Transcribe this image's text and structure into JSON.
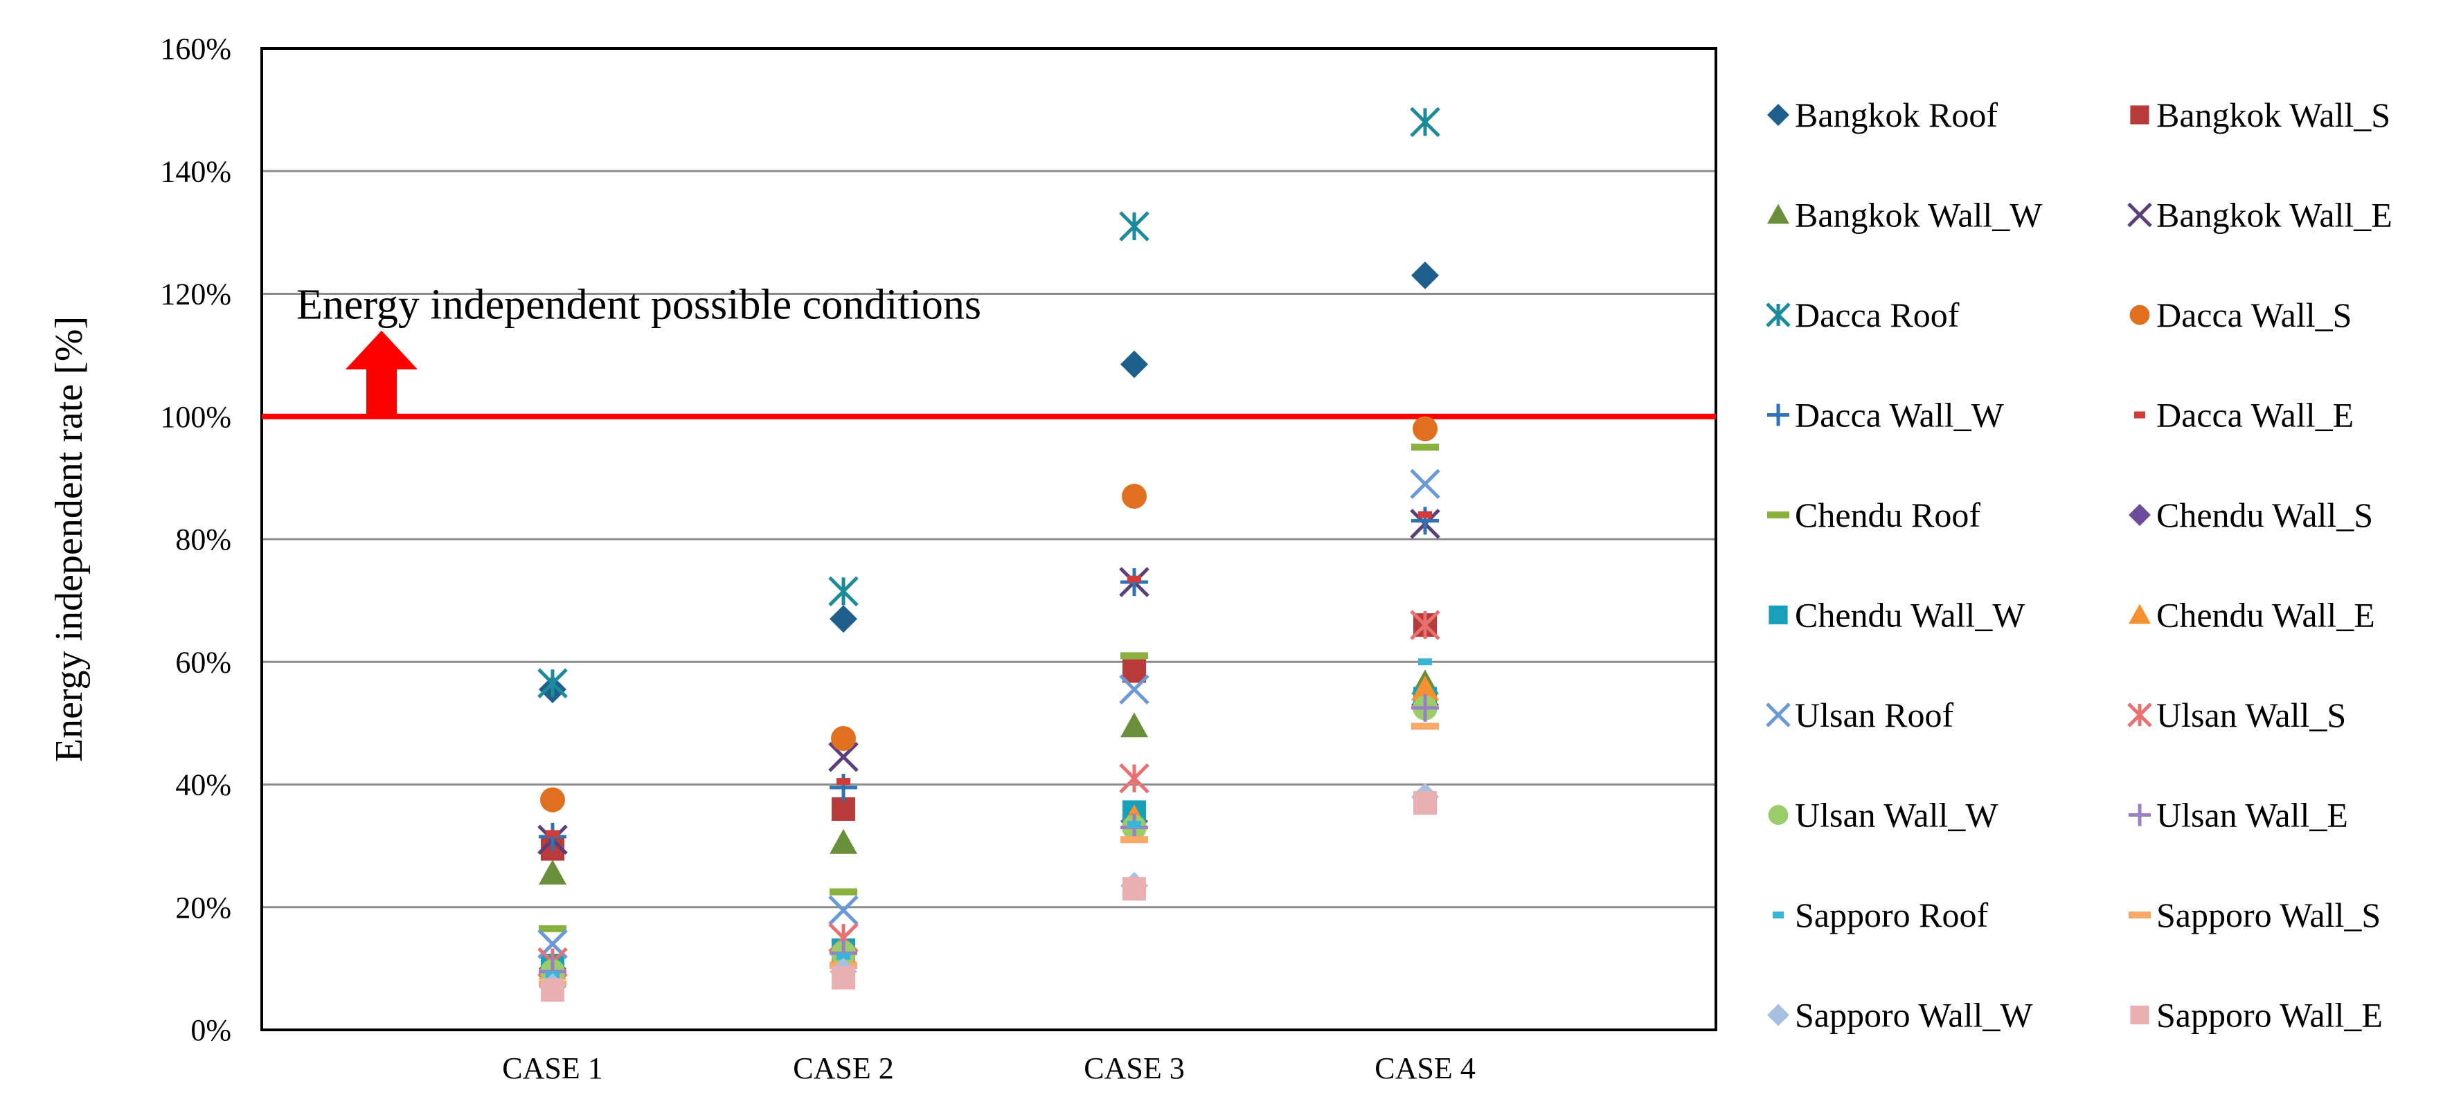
{
  "chart_data": {
    "type": "scatter",
    "title": "",
    "xlabel": "",
    "ylabel": "Energy independent rate [%]",
    "ylim": [
      0,
      160
    ],
    "yticks": [
      0,
      20,
      40,
      60,
      80,
      100,
      120,
      140,
      160
    ],
    "ytick_labels": [
      "0%",
      "20%",
      "40%",
      "60%",
      "80%",
      "100%",
      "120%",
      "140%",
      "160%"
    ],
    "categories": [
      "CASE 1",
      "CASE 2",
      "CASE 3",
      "CASE 4"
    ],
    "grid": true,
    "legend_position": "right",
    "reference_line": {
      "value": 100,
      "color": "#ff0000"
    },
    "annotation": "Energy independent possible conditions",
    "series": [
      {
        "name": "Bangkok Roof",
        "marker": "diamond",
        "color": "#1f5f8b",
        "values": [
          55.5,
          67,
          108.5,
          123
        ]
      },
      {
        "name": "Bangkok Wall_S",
        "marker": "square",
        "color": "#b83a3a",
        "values": [
          29.5,
          36,
          58.5,
          66
        ]
      },
      {
        "name": "Bangkok Wall_W",
        "marker": "triangle",
        "color": "#6a8f3a",
        "values": [
          25.5,
          30.5,
          49.5,
          56.5
        ]
      },
      {
        "name": "Bangkok Wall_E",
        "marker": "x",
        "color": "#5b3f7a",
        "values": [
          31,
          44.5,
          73,
          82.5
        ]
      },
      {
        "name": "Dacca Roof",
        "marker": "star",
        "color": "#1b8a9a",
        "values": [
          56.5,
          71.5,
          131,
          148
        ]
      },
      {
        "name": "Dacca Wall_S",
        "marker": "circle",
        "color": "#e07020",
        "values": [
          37.5,
          47.5,
          87,
          98
        ]
      },
      {
        "name": "Dacca Wall_W",
        "marker": "plus",
        "color": "#2f73b5",
        "values": [
          31.5,
          39.5,
          73,
          83
        ]
      },
      {
        "name": "Dacca Wall_E",
        "marker": "dash",
        "color": "#d03c3c",
        "values": [
          32,
          40.5,
          73.5,
          84
        ]
      },
      {
        "name": "Chendu Roof",
        "marker": "hline",
        "color": "#8ab040",
        "values": [
          16.5,
          22.5,
          61,
          95
        ]
      },
      {
        "name": "Chendu Wall_S",
        "marker": "diamond",
        "color": "#6b4c9a",
        "values": [
          10,
          13,
          34,
          53
        ]
      },
      {
        "name": "Chendu Wall_W",
        "marker": "square",
        "color": "#17a0b8",
        "values": [
          10.5,
          13,
          35.5,
          54
        ]
      },
      {
        "name": "Chendu Wall_E",
        "marker": "triangle",
        "color": "#f79030",
        "values": [
          10,
          12.5,
          34.5,
          55.5
        ]
      },
      {
        "name": "Ulsan Roof",
        "marker": "x",
        "color": "#6a9ad6",
        "values": [
          14,
          19.5,
          55.5,
          89
        ]
      },
      {
        "name": "Ulsan Wall_S",
        "marker": "star",
        "color": "#e87070",
        "values": [
          11,
          15,
          41,
          66
        ]
      },
      {
        "name": "Ulsan Wall_W",
        "marker": "circle",
        "color": "#9acd6a",
        "values": [
          9.5,
          12.5,
          33,
          52.5
        ]
      },
      {
        "name": "Ulsan Wall_E",
        "marker": "plus",
        "color": "#9a80c0",
        "values": [
          9.5,
          12.5,
          33,
          52.5
        ]
      },
      {
        "name": "Sapporo Roof",
        "marker": "dash",
        "color": "#3cb4d8",
        "values": [
          9,
          12,
          33.5,
          60
        ]
      },
      {
        "name": "Sapporo Wall_S",
        "marker": "hline",
        "color": "#f8a868",
        "values": [
          7.5,
          10.5,
          31,
          49.5
        ]
      },
      {
        "name": "Sapporo Wall_W",
        "marker": "diamond",
        "color": "#a8c0e0",
        "values": [
          7,
          9.5,
          23.5,
          38
        ]
      },
      {
        "name": "Sapporo Wall_E",
        "marker": "square",
        "color": "#eaafb0",
        "values": [
          6.5,
          8.5,
          23,
          37
        ]
      }
    ]
  }
}
